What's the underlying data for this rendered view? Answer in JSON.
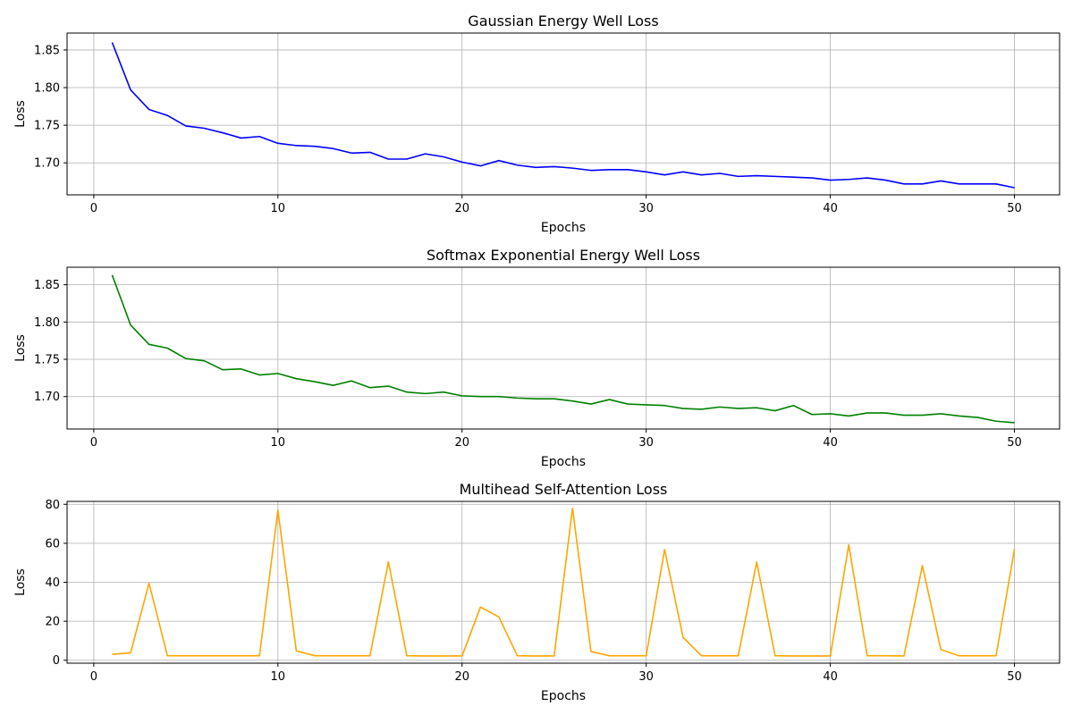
{
  "chart_data": [
    {
      "type": "line",
      "title": "Gaussian Energy Well Loss",
      "xlabel": "Epochs",
      "ylabel": "Loss",
      "xlim": [
        -1.45,
        52.45
      ],
      "ylim": [
        1.6575,
        1.8725
      ],
      "xticks": [
        0,
        10,
        20,
        30,
        40,
        50
      ],
      "yticks": [
        1.7,
        1.75,
        1.8,
        1.85
      ],
      "ytick_labels": [
        "1.70",
        "1.75",
        "1.80",
        "1.85"
      ],
      "grid": true,
      "color": "#0000ff",
      "series": [
        {
          "x": [
            1,
            2,
            3,
            4,
            5,
            6,
            7,
            8,
            9,
            10,
            11,
            12,
            13,
            14,
            15,
            16,
            17,
            18,
            19,
            20,
            21,
            22,
            23,
            24,
            25,
            26,
            27,
            28,
            29,
            30,
            31,
            32,
            33,
            34,
            35,
            36,
            37,
            38,
            39,
            40,
            41,
            42,
            43,
            44,
            45,
            46,
            47,
            48,
            49,
            50
          ],
          "values": [
            1.86,
            1.797,
            1.771,
            1.763,
            1.749,
            1.746,
            1.74,
            1.733,
            1.735,
            1.726,
            1.723,
            1.722,
            1.719,
            1.713,
            1.714,
            1.705,
            1.705,
            1.712,
            1.708,
            1.701,
            1.696,
            1.703,
            1.697,
            1.694,
            1.695,
            1.693,
            1.69,
            1.691,
            1.691,
            1.688,
            1.684,
            1.688,
            1.684,
            1.686,
            1.682,
            1.683,
            1.682,
            1.681,
            1.68,
            1.677,
            1.678,
            1.68,
            1.677,
            1.672,
            1.672,
            1.676,
            1.672,
            1.672,
            1.672,
            1.667
          ]
        }
      ]
    },
    {
      "type": "line",
      "title": "Softmax Exponential Energy Well Loss",
      "xlabel": "Epochs",
      "ylabel": "Loss",
      "xlim": [
        -1.45,
        52.45
      ],
      "ylim": [
        1.6565,
        1.8735
      ],
      "xticks": [
        0,
        10,
        20,
        30,
        40,
        50
      ],
      "yticks": [
        1.7,
        1.75,
        1.8,
        1.85
      ],
      "ytick_labels": [
        "1.70",
        "1.75",
        "1.80",
        "1.85"
      ],
      "grid": true,
      "color": "#008000",
      "series": [
        {
          "x": [
            1,
            2,
            3,
            4,
            5,
            6,
            7,
            8,
            9,
            10,
            11,
            12,
            13,
            14,
            15,
            16,
            17,
            18,
            19,
            20,
            21,
            22,
            23,
            24,
            25,
            26,
            27,
            28,
            29,
            30,
            31,
            32,
            33,
            34,
            35,
            36,
            37,
            38,
            39,
            40,
            41,
            42,
            43,
            44,
            45,
            46,
            47,
            48,
            49,
            50
          ],
          "values": [
            1.863,
            1.796,
            1.77,
            1.765,
            1.751,
            1.748,
            1.736,
            1.737,
            1.729,
            1.731,
            1.724,
            1.72,
            1.715,
            1.721,
            1.712,
            1.714,
            1.706,
            1.704,
            1.706,
            1.701,
            1.7,
            1.7,
            1.698,
            1.697,
            1.697,
            1.694,
            1.69,
            1.696,
            1.69,
            1.689,
            1.688,
            1.684,
            1.683,
            1.686,
            1.684,
            1.685,
            1.681,
            1.688,
            1.676,
            1.677,
            1.674,
            1.678,
            1.678,
            1.675,
            1.675,
            1.677,
            1.674,
            1.672,
            1.667,
            1.665
          ]
        }
      ]
    },
    {
      "type": "line",
      "title": "Multihead Self-Attention Loss",
      "xlabel": "Epochs",
      "ylabel": "Loss",
      "xlim": [
        -1.45,
        52.45
      ],
      "ylim": [
        -1.5,
        81.5
      ],
      "xticks": [
        0,
        10,
        20,
        30,
        40,
        50
      ],
      "yticks": [
        0,
        20,
        40,
        60,
        80
      ],
      "ytick_labels": [
        "0",
        "20",
        "40",
        "60",
        "80"
      ],
      "grid": true,
      "color": "#ffa500",
      "series": [
        {
          "x": [
            1,
            2,
            3,
            4,
            5,
            6,
            7,
            8,
            9,
            10,
            11,
            12,
            13,
            14,
            15,
            16,
            17,
            18,
            19,
            20,
            21,
            22,
            23,
            24,
            25,
            26,
            27,
            28,
            29,
            30,
            31,
            32,
            33,
            34,
            35,
            36,
            37,
            38,
            39,
            40,
            41,
            42,
            43,
            44,
            45,
            46,
            47,
            48,
            49,
            50
          ],
          "values": [
            3.0,
            3.8,
            39.5,
            2.3,
            2.3,
            2.3,
            2.3,
            2.3,
            2.3,
            77.0,
            4.8,
            2.3,
            2.3,
            2.3,
            2.3,
            50.5,
            2.3,
            2.2,
            2.2,
            2.2,
            27.3,
            22.2,
            2.3,
            2.2,
            2.2,
            78.0,
            4.5,
            2.3,
            2.3,
            2.3,
            56.8,
            11.8,
            2.3,
            2.3,
            2.3,
            50.4,
            2.3,
            2.2,
            2.2,
            2.2,
            59.2,
            2.3,
            2.3,
            2.2,
            48.6,
            5.5,
            2.3,
            2.3,
            2.3,
            57.0
          ]
        }
      ]
    }
  ]
}
